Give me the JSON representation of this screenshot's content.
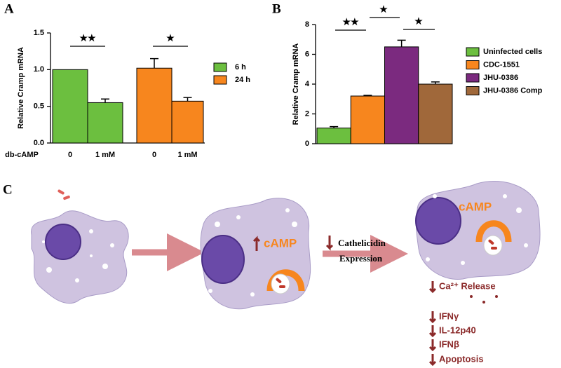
{
  "chart_data": [
    {
      "type": "bar",
      "panel_label": "A",
      "ylabel": "Relative Cramp mRNA",
      "xlabel": "db-cAMP",
      "categories": [
        "0",
        "1 mM",
        "0",
        "1 mM"
      ],
      "series": [
        {
          "name": "6 h",
          "color": "#6cbf3f",
          "values": [
            1.0,
            0.55,
            null,
            null
          ],
          "errors": [
            null,
            0.05,
            null,
            null
          ]
        },
        {
          "name": "24 h",
          "color": "#f7861e",
          "values": [
            null,
            null,
            1.02,
            0.57
          ],
          "errors": [
            null,
            null,
            0.13,
            0.05
          ]
        }
      ],
      "ylim": [
        0,
        1.5
      ],
      "yticks": [
        {
          "value": 0,
          "label": "0.0"
        },
        {
          "value": 0.5,
          "label": "0.5"
        },
        {
          "value": 1,
          "label": "1.0"
        },
        {
          "value": 1.5,
          "label": "1.5"
        }
      ],
      "annotations": [
        "★★",
        "★"
      ]
    },
    {
      "type": "bar",
      "panel_label": "B",
      "ylabel": "Relative Cramp mRNA",
      "categories": [
        null
      ],
      "series": [
        {
          "name": "Uninfected cells",
          "color": "#6cbf3f",
          "values": [
            1.05
          ],
          "errors": [
            0.1
          ]
        },
        {
          "name": "CDC-1551",
          "color": "#f7861e",
          "values": [
            3.2
          ],
          "errors": [
            0.05
          ]
        },
        {
          "name": "JHU-0386",
          "color": "#7b2a7f",
          "values": [
            6.5
          ],
          "errors": [
            0.45
          ]
        },
        {
          "name": "JHU-0386 Comp",
          "color": "#a0683a",
          "values": [
            4.0
          ],
          "errors": [
            0.15
          ]
        }
      ],
      "ylim": [
        0,
        8
      ],
      "yticks": [
        0,
        2,
        4,
        6,
        8
      ],
      "annotations": [
        "★★",
        "★",
        "★"
      ]
    }
  ],
  "diagram": {
    "panel_label": "C",
    "cell2_label": "cAMP",
    "cell3_label": "cAMP",
    "arrow_label": [
      "Cathelicidin",
      "Expression"
    ],
    "effects": [
      "Ca²⁺ Release",
      "IFNγ",
      "IL-12p40",
      "IFNβ",
      "Apoptosis"
    ]
  }
}
